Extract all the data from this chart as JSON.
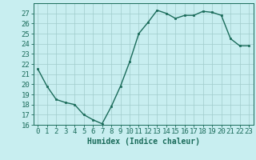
{
  "x": [
    0,
    1,
    2,
    3,
    4,
    5,
    6,
    7,
    8,
    9,
    10,
    11,
    12,
    13,
    14,
    15,
    16,
    17,
    18,
    19,
    20,
    21,
    22,
    23
  ],
  "y": [
    21.5,
    19.8,
    18.5,
    18.2,
    18.0,
    17.0,
    16.5,
    16.1,
    17.8,
    19.8,
    22.2,
    25.0,
    26.1,
    27.3,
    27.0,
    26.5,
    26.8,
    26.8,
    27.2,
    27.1,
    26.8,
    24.5,
    23.8,
    23.8
  ],
  "xlabel": "Humidex (Indice chaleur)",
  "xlim": [
    -0.5,
    23.5
  ],
  "ylim": [
    16,
    28
  ],
  "yticks": [
    16,
    17,
    18,
    19,
    20,
    21,
    22,
    23,
    24,
    25,
    26,
    27
  ],
  "xticks": [
    0,
    1,
    2,
    3,
    4,
    5,
    6,
    7,
    8,
    9,
    10,
    11,
    12,
    13,
    14,
    15,
    16,
    17,
    18,
    19,
    20,
    21,
    22,
    23
  ],
  "line_color": "#1a6b5a",
  "marker_color": "#1a6b5a",
  "bg_color": "#c8eef0",
  "grid_color": "#a0cccc",
  "tick_label_color": "#1a6b5a",
  "axis_color": "#1a6b5a",
  "xlabel_color": "#1a6b5a",
  "xlabel_fontsize": 7,
  "tick_fontsize": 6.5,
  "markersize": 1.8,
  "linewidth": 1.0
}
